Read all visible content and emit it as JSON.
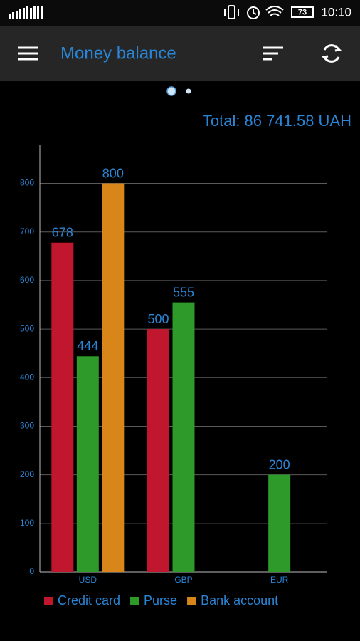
{
  "status_bar": {
    "battery": "73",
    "time": "10:10"
  },
  "app_bar": {
    "title": "Money balance"
  },
  "total": "Total: 86 741.58 UAH",
  "chart_data": {
    "type": "bar",
    "categories": [
      "USD",
      "GBP",
      "EUR"
    ],
    "series": [
      {
        "name": "Credit card",
        "color": "#c0172f",
        "values": [
          678,
          500,
          null
        ]
      },
      {
        "name": "Purse",
        "color": "#2d9a2a",
        "values": [
          444,
          555,
          200
        ]
      },
      {
        "name": "Bank account",
        "color": "#d8861a",
        "values": [
          800,
          null,
          null
        ]
      }
    ],
    "ylim": [
      0,
      880
    ],
    "yticks": [
      0,
      100,
      200,
      300,
      400,
      500,
      600,
      700,
      800
    ],
    "grid": true,
    "legend": "bottom"
  }
}
